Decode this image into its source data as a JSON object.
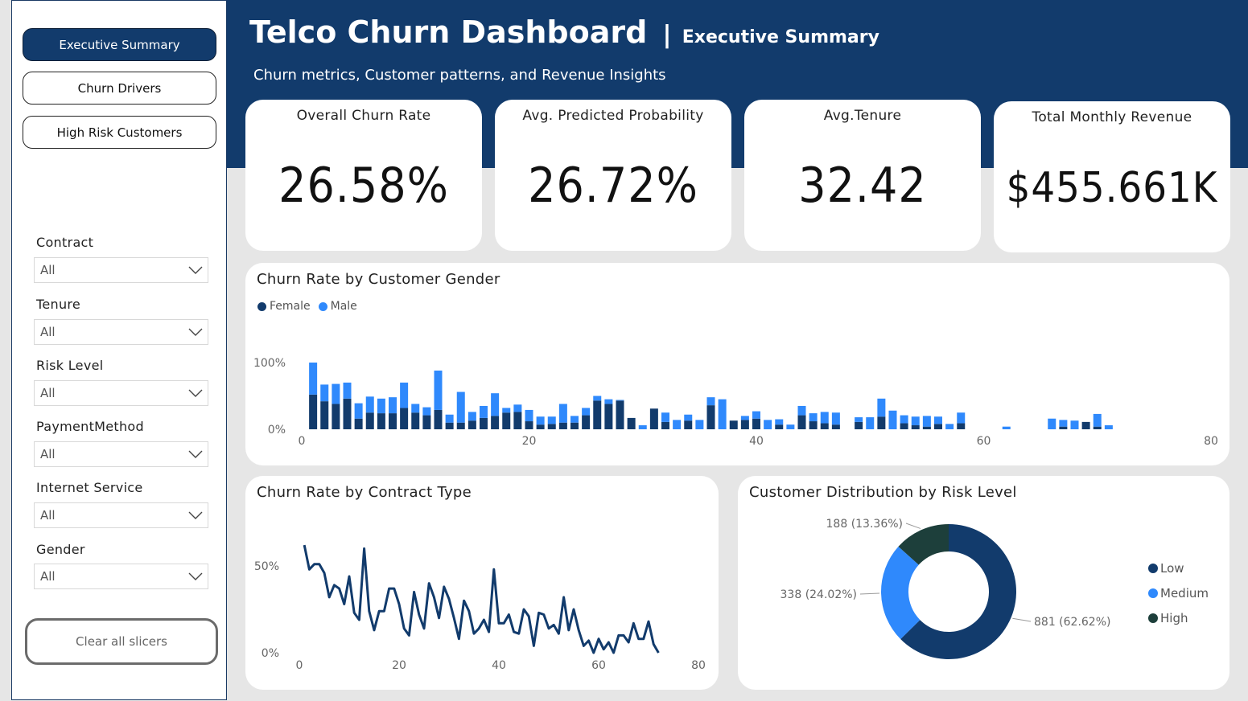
{
  "nav": {
    "executive_summary": "Executive Summary",
    "churn_drivers": "Churn Drivers",
    "high_risk_customers": "High Risk Customers"
  },
  "slicers": [
    {
      "label": "Contract",
      "value": "All"
    },
    {
      "label": "Tenure",
      "value": "All"
    },
    {
      "label": "Risk Level",
      "value": "All"
    },
    {
      "label": "PaymentMethod",
      "value": "All"
    },
    {
      "label": "Internet Service",
      "value": "All"
    },
    {
      "label": "Gender",
      "value": "All"
    }
  ],
  "clear_button": "Clear all slicers",
  "header": {
    "title": "Telco Churn Dashboard",
    "separator": "|",
    "page": "Executive Summary",
    "subtitle": "Churn metrics, Customer patterns, and Revenue Insights"
  },
  "kpis": [
    {
      "label": "Overall Churn Rate",
      "value": "26.58%"
    },
    {
      "label": "Avg. Predicted Probability",
      "value": "26.72%"
    },
    {
      "label": "Avg.Tenure",
      "value": "32.42"
    },
    {
      "label": "Total Monthly Revenue",
      "value": "$455.661K"
    }
  ],
  "colors": {
    "navy": "#123b6c",
    "blue": "#2f89fc",
    "dark_green": "#1d3f3b"
  },
  "chart_data": [
    {
      "type": "bar",
      "stacked": true,
      "title": "Churn Rate by Customer Gender",
      "legend": [
        "Female",
        "Male"
      ],
      "x_ticks": [
        "0",
        "20",
        "40",
        "60",
        "80"
      ],
      "y_ticks": [
        "0%",
        "100%"
      ],
      "xlim": [
        0,
        80
      ],
      "ylim": [
        0,
        100
      ],
      "series": [
        {
          "name": "Female",
          "x": [
            1,
            2,
            3,
            4,
            5,
            6,
            7,
            8,
            9,
            10,
            11,
            12,
            13,
            14,
            15,
            16,
            17,
            18,
            19,
            20,
            21,
            22,
            23,
            24,
            25,
            26,
            27,
            28,
            29,
            30,
            31,
            32,
            33,
            34,
            35,
            36,
            37,
            38,
            39,
            40,
            41,
            42,
            43,
            44,
            45,
            46,
            47,
            49,
            50,
            51,
            52,
            53,
            54,
            55,
            56,
            57,
            58,
            59,
            62,
            64,
            66,
            67,
            68,
            69,
            70,
            71
          ],
          "values": [
            52,
            42,
            38,
            46,
            16,
            25,
            24,
            24,
            32,
            25,
            21,
            29,
            10,
            10,
            13,
            17,
            20,
            25,
            26,
            12,
            7,
            8,
            10,
            10,
            21,
            43,
            38,
            43,
            17,
            0,
            31,
            11,
            0,
            13,
            0,
            36,
            0,
            13,
            14,
            16,
            0,
            7,
            0,
            21,
            12,
            9,
            7,
            11,
            0,
            19,
            0,
            9,
            6,
            4,
            8,
            0,
            9,
            0,
            0,
            0,
            0,
            4,
            0,
            11,
            4,
            0
          ],
          "xs": null
        },
        {
          "name": "Male",
          "x": [
            1,
            2,
            3,
            4,
            5,
            6,
            7,
            8,
            9,
            10,
            11,
            12,
            13,
            14,
            15,
            16,
            17,
            18,
            19,
            20,
            21,
            22,
            23,
            24,
            25,
            26,
            27,
            28,
            29,
            30,
            31,
            32,
            33,
            34,
            35,
            36,
            37,
            38,
            39,
            40,
            41,
            42,
            43,
            44,
            45,
            46,
            47,
            49,
            50,
            51,
            52,
            53,
            54,
            55,
            56,
            57,
            58,
            59,
            62,
            64,
            66,
            67,
            68,
            69,
            70,
            71
          ],
          "values": [
            48,
            25,
            30,
            24,
            23,
            24,
            22,
            24,
            38,
            13,
            12,
            59,
            12,
            46,
            13,
            18,
            34,
            7,
            11,
            17,
            12,
            11,
            28,
            10,
            11,
            7,
            7,
            1,
            0,
            6,
            0,
            14,
            14,
            9,
            14,
            12,
            45,
            0,
            6,
            11,
            14,
            8,
            7,
            14,
            12,
            17,
            18,
            7,
            18,
            27,
            28,
            12,
            13,
            16,
            11,
            8,
            16,
            0,
            4,
            0,
            16,
            10,
            13,
            0,
            19,
            6
          ]
        }
      ]
    },
    {
      "type": "line",
      "title": "Churn Rate by Contract Type",
      "x_ticks": [
        "0",
        "20",
        "40",
        "60",
        "80"
      ],
      "y_ticks": [
        "0%",
        "50%"
      ],
      "xlim": [
        0,
        80
      ],
      "ylim": [
        0,
        100
      ],
      "x": [
        1,
        2,
        3,
        4,
        5,
        6,
        7,
        8,
        9,
        10,
        11,
        12,
        13,
        14,
        15,
        16,
        17,
        18,
        19,
        20,
        21,
        22,
        23,
        24,
        25,
        26,
        27,
        28,
        29,
        30,
        31,
        32,
        33,
        34,
        35,
        36,
        37,
        38,
        39,
        40,
        41,
        42,
        43,
        44,
        45,
        46,
        47,
        48,
        49,
        50,
        51,
        52,
        53,
        54,
        55,
        56,
        57,
        58,
        59,
        60,
        61,
        62,
        63,
        64,
        65,
        66,
        67,
        68,
        69,
        70,
        71,
        72
      ],
      "values": [
        62,
        48,
        51,
        51,
        46,
        32,
        39,
        37,
        28,
        44,
        23,
        19,
        60,
        24,
        13,
        24,
        24,
        37,
        37,
        28,
        14,
        10,
        35,
        22,
        14,
        40,
        32,
        20,
        38,
        31,
        20,
        8,
        30,
        24,
        11,
        14,
        19,
        12,
        48,
        17,
        17,
        22,
        12,
        11,
        25,
        21,
        4,
        23,
        22,
        14,
        16,
        11,
        32,
        13,
        25,
        13,
        4,
        7,
        0,
        8,
        2,
        6,
        0,
        10,
        10,
        6,
        17,
        8,
        8,
        18,
        5,
        0
      ]
    },
    {
      "type": "pie",
      "donut": true,
      "title": "Customer Distribution by Risk Level",
      "categories": [
        "Low",
        "Medium",
        "High"
      ],
      "values": [
        881,
        338,
        188
      ],
      "labels": [
        "881 (62.62%)",
        "338 (24.02%)",
        "188 (13.36%)"
      ],
      "legend": [
        "Low",
        "Medium",
        "High"
      ]
    }
  ]
}
